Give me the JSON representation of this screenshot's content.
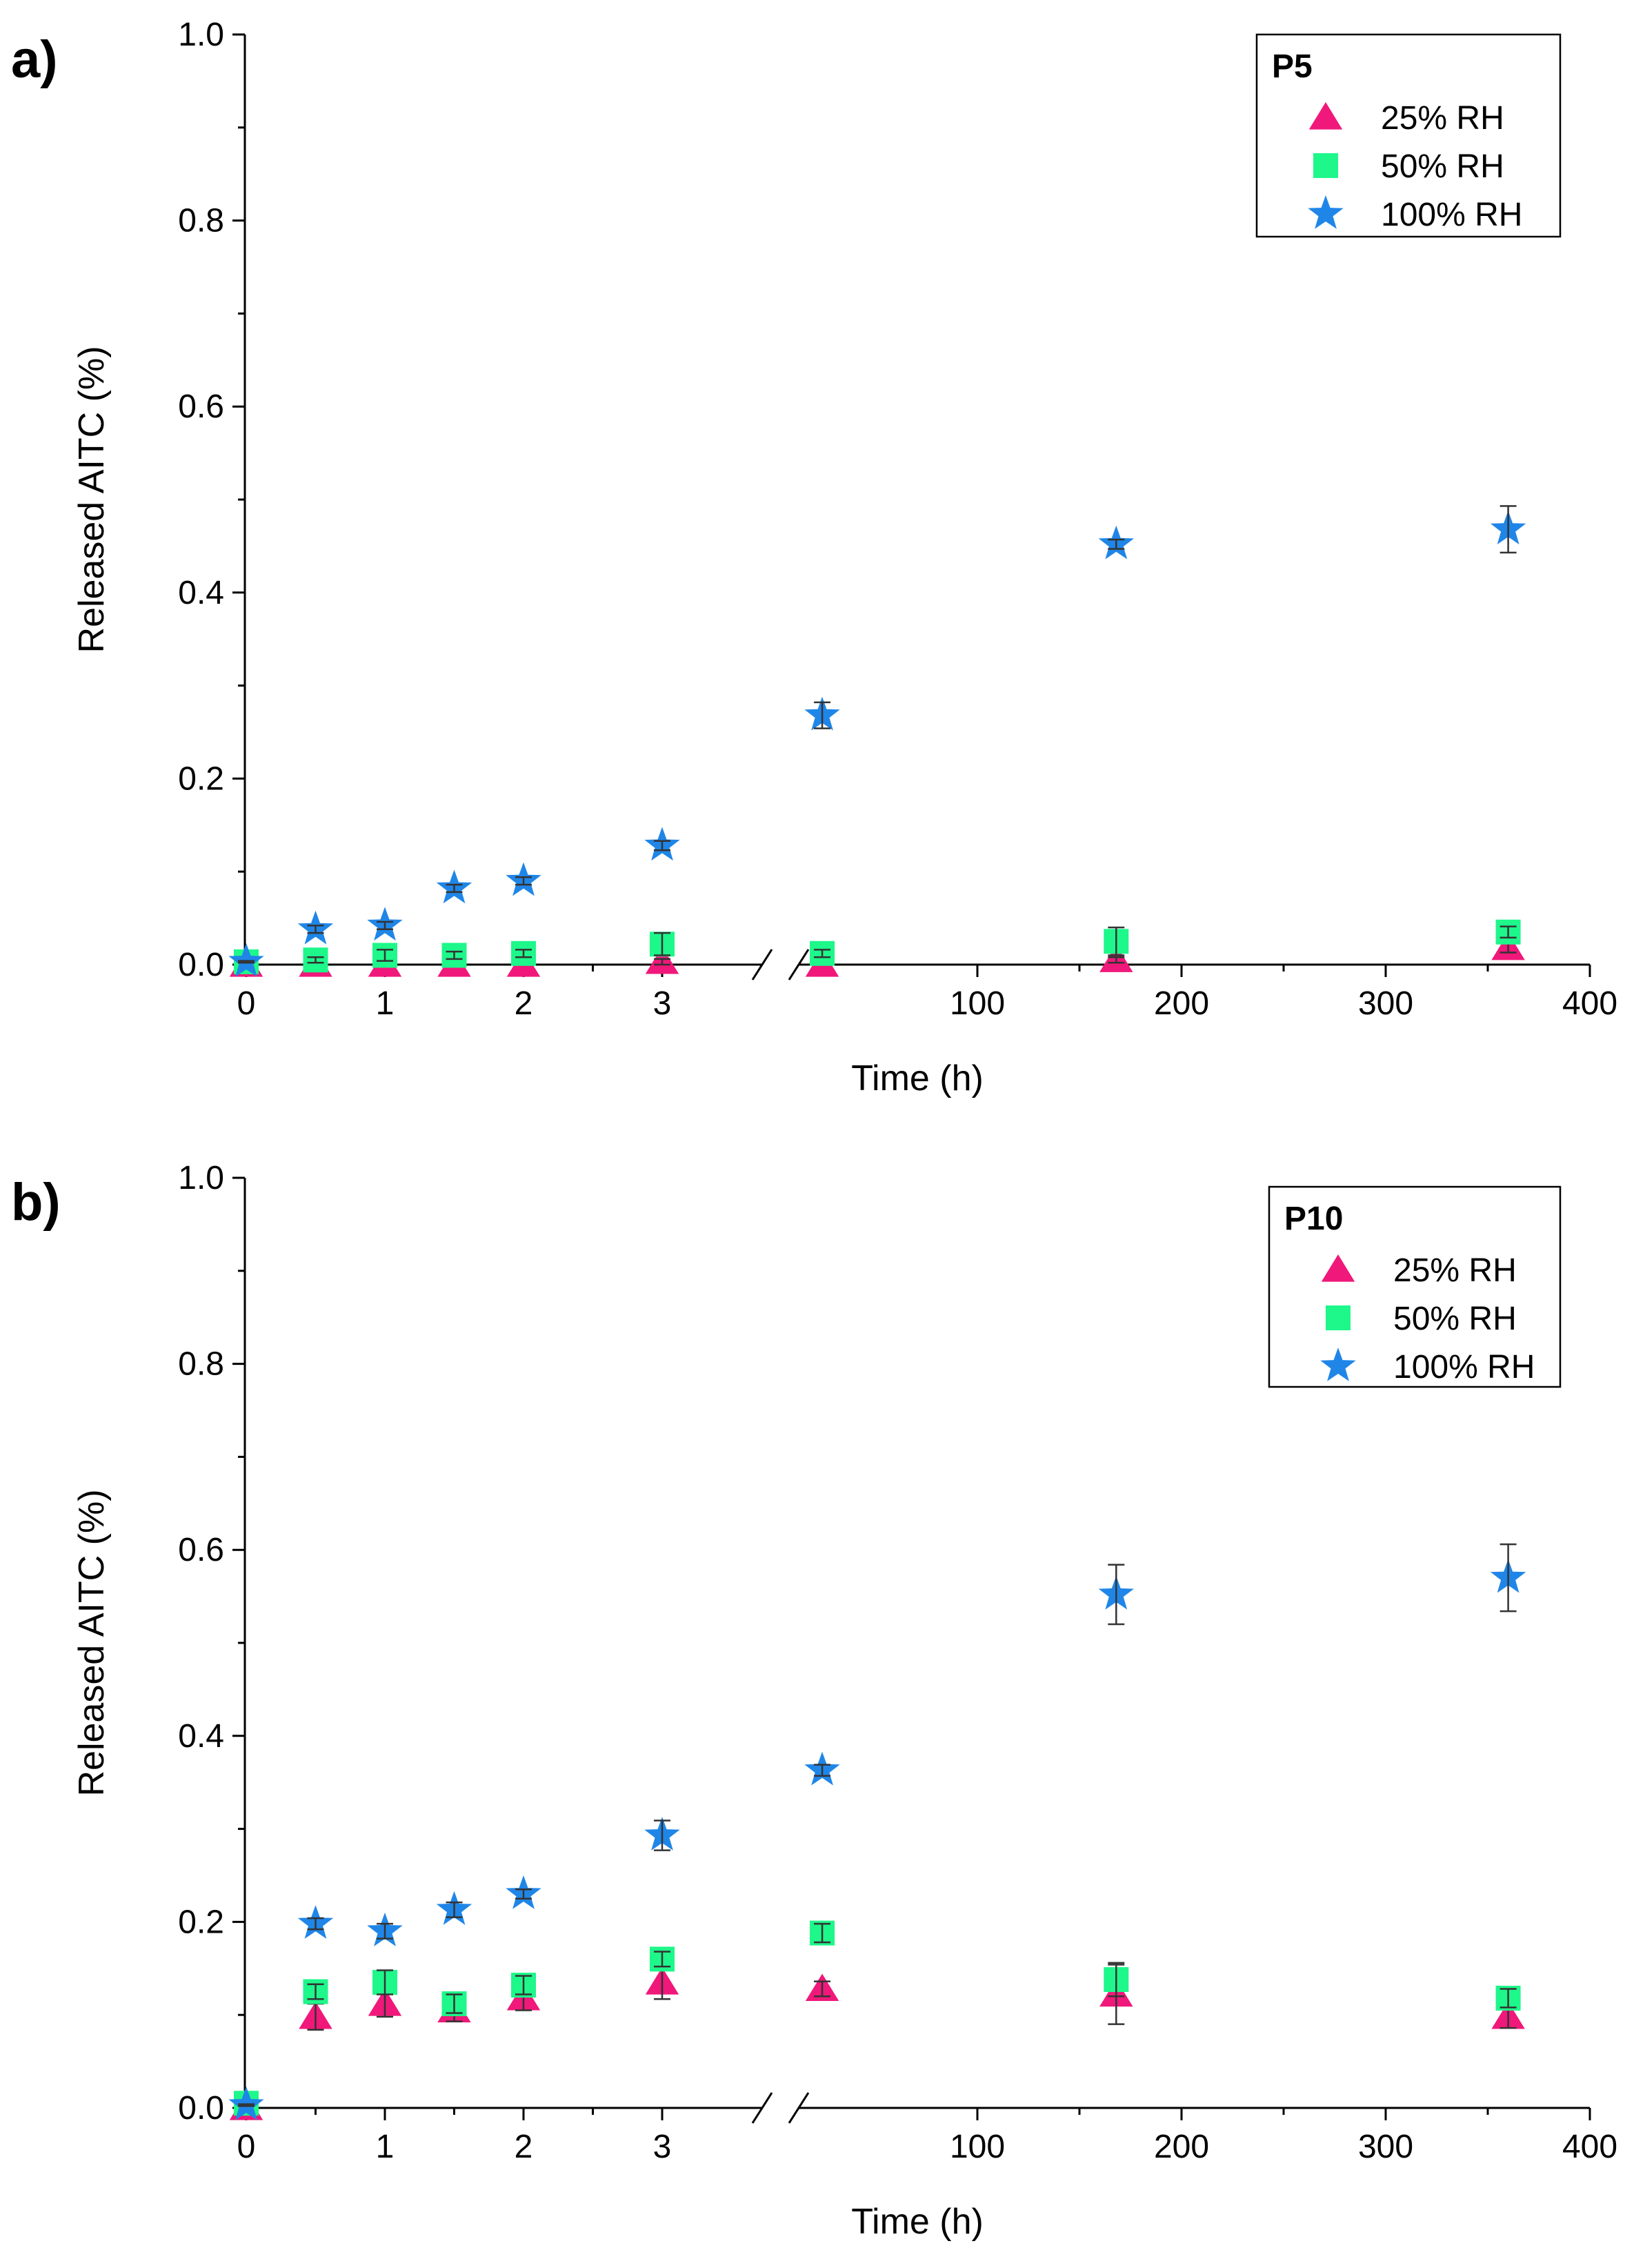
{
  "colors": {
    "rh25": "#f0187a",
    "rh50": "#1ef78a",
    "rh100": "#1f86e8",
    "errorbar": "#333333",
    "axis": "#000000"
  },
  "chart_data": [
    {
      "type": "scatter",
      "panel": "a)",
      "legend_title": "P5",
      "legend_position": "top-right",
      "xlabel": "Time (h)",
      "ylabel": "Released AITC (%)",
      "ylim": [
        0,
        1.0
      ],
      "yticks": [
        "0.0",
        "0.2",
        "0.4",
        "0.6",
        "0.8",
        "1.0"
      ],
      "xaxis_break": "between 3 and ~25 h",
      "xticks_left": [
        "0",
        "1",
        "2",
        "3"
      ],
      "xticks_right": [
        "100",
        "200",
        "300",
        "400"
      ],
      "series": [
        {
          "name": "25% RH",
          "marker": "triangle",
          "color_key": "rh25",
          "points": [
            [
              0,
              0.0
            ],
            [
              0.5,
              0.0
            ],
            [
              1,
              0.0
            ],
            [
              1.5,
              0.0
            ],
            [
              2,
              0.0
            ],
            [
              3,
              0.003
            ],
            [
              24,
              0.0
            ],
            [
              168,
              0.005
            ],
            [
              360,
              0.018
            ]
          ],
          "errors": [
            0,
            0,
            0,
            0,
            0,
            0.003,
            0,
            0.003,
            0.005
          ]
        },
        {
          "name": "50% RH",
          "marker": "square",
          "color_key": "rh50",
          "points": [
            [
              0,
              0.003
            ],
            [
              0.5,
              0.005
            ],
            [
              1,
              0.01
            ],
            [
              1.5,
              0.01
            ],
            [
              2,
              0.012
            ],
            [
              3,
              0.022
            ],
            [
              24,
              0.012
            ],
            [
              168,
              0.025
            ],
            [
              360,
              0.035
            ]
          ],
          "errors": [
            0.001,
            0.003,
            0.006,
            0.004,
            0.004,
            0.012,
            0.004,
            0.015,
            0.006
          ]
        },
        {
          "name": "100% RH",
          "marker": "star",
          "color_key": "rh100",
          "points": [
            [
              0,
              0.003
            ],
            [
              0.5,
              0.038
            ],
            [
              1,
              0.042
            ],
            [
              1.5,
              0.082
            ],
            [
              2,
              0.09
            ],
            [
              3,
              0.128
            ],
            [
              24,
              0.268
            ],
            [
              168,
              0.452
            ],
            [
              360,
              0.468
            ]
          ],
          "errors": [
            0.001,
            0.004,
            0.004,
            0.004,
            0.004,
            0.005,
            0.014,
            0.005,
            0.025
          ]
        }
      ]
    },
    {
      "type": "scatter",
      "panel": "b)",
      "legend_title": "P10",
      "legend_position": "top-right",
      "xlabel": "Time (h)",
      "ylabel": "Released AITC (%)",
      "ylim": [
        0,
        1.0
      ],
      "yticks": [
        "0.0",
        "0.2",
        "0.4",
        "0.6",
        "0.8",
        "1.0"
      ],
      "xaxis_break": "between 3 and ~25 h",
      "xticks_left": [
        "0",
        "1",
        "2",
        "3"
      ],
      "xticks_right": [
        "100",
        "200",
        "300",
        "400"
      ],
      "series": [
        {
          "name": "25% RH",
          "marker": "triangle",
          "color_key": "rh25",
          "points": [
            [
              0,
              0.0
            ],
            [
              0.5,
              0.098
            ],
            [
              1,
              0.112
            ],
            [
              1.5,
              0.105
            ],
            [
              2,
              0.118
            ],
            [
              3,
              0.135
            ],
            [
              24,
              0.128
            ],
            [
              168,
              0.122
            ],
            [
              360,
              0.098
            ]
          ],
          "errors": [
            0,
            0.014,
            0.014,
            0.012,
            0.013,
            0.018,
            0.008,
            0.032,
            0.012
          ]
        },
        {
          "name": "50% RH",
          "marker": "square",
          "color_key": "rh50",
          "points": [
            [
              0,
              0.005
            ],
            [
              0.5,
              0.125
            ],
            [
              1,
              0.135
            ],
            [
              1.5,
              0.112
            ],
            [
              2,
              0.132
            ],
            [
              3,
              0.16
            ],
            [
              24,
              0.188
            ],
            [
              168,
              0.138
            ],
            [
              360,
              0.118
            ]
          ],
          "errors": [
            0.001,
            0.008,
            0.013,
            0.01,
            0.01,
            0.008,
            0.01,
            0.018,
            0.01
          ]
        },
        {
          "name": "100% RH",
          "marker": "star",
          "color_key": "rh100",
          "points": [
            [
              0,
              0.003
            ],
            [
              0.5,
              0.198
            ],
            [
              1,
              0.19
            ],
            [
              1.5,
              0.213
            ],
            [
              2,
              0.23
            ],
            [
              3,
              0.293
            ],
            [
              24,
              0.363
            ],
            [
              168,
              0.552
            ],
            [
              360,
              0.57
            ]
          ],
          "errors": [
            0.001,
            0.006,
            0.008,
            0.008,
            0.005,
            0.016,
            0.006,
            0.032,
            0.036
          ]
        }
      ]
    }
  ]
}
